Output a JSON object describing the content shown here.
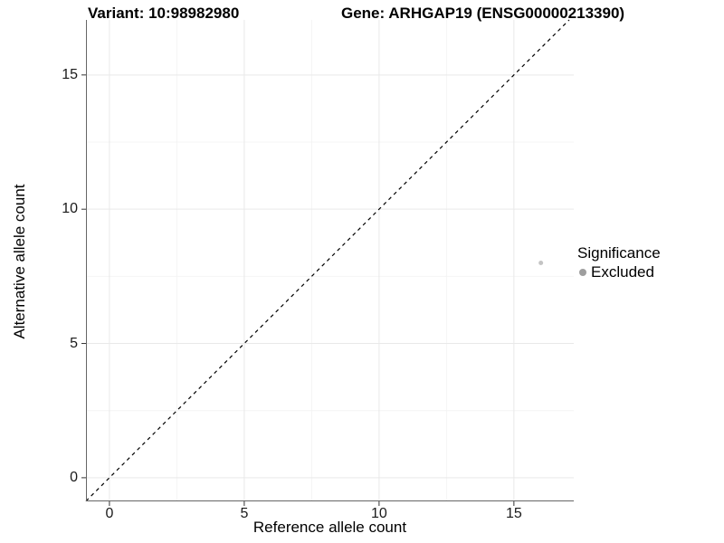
{
  "chart_data": {
    "type": "scatter",
    "title_left": "Variant: 10:98982980",
    "title_right": "Gene: ARHGAP19 (ENSG00000213390)",
    "xlabel": "Reference allele count",
    "ylabel": "Alternative allele count",
    "xlim": [
      -0.87,
      17.22
    ],
    "ylim": [
      -0.88,
      17.05
    ],
    "xticks": [
      0,
      5,
      10,
      15
    ],
    "yticks": [
      0,
      5,
      10,
      15
    ],
    "minor_ticks_x": [
      2.5,
      7.5,
      12.5
    ],
    "minor_ticks_y": [
      2.5,
      7.5,
      12.5
    ],
    "grid": true,
    "points": [
      {
        "x": 16,
        "y": 8,
        "series": "Excluded"
      }
    ],
    "reference_line": {
      "style": "dashed",
      "equation": "y = x"
    },
    "legend": {
      "title": "Significance",
      "position": "right",
      "items": [
        {
          "label": "Excluded",
          "color": "#9e9e9e"
        }
      ]
    },
    "colors": {
      "point": "#c4c4c4",
      "grid_major": "#e9e9e9",
      "grid_minor": "#f4f4f4",
      "axis_line": "#666666",
      "tick_mark": "#333333",
      "dashed_line": "#000000",
      "background": "#ffffff",
      "text": "#000000"
    }
  }
}
